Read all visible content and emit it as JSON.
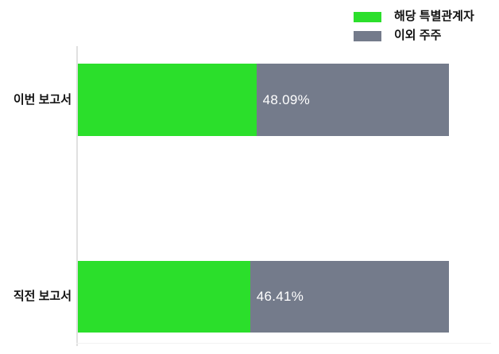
{
  "chart_data": {
    "type": "bar",
    "orientation": "horizontal",
    "stacked": true,
    "title": "",
    "xlabel": "",
    "ylabel": "",
    "xlim": [
      0,
      100
    ],
    "grid": false,
    "legend_position": "top-right",
    "categories": [
      "이번 보고서",
      "직전 보고서"
    ],
    "series": [
      {
        "name": "해당 특별관계자",
        "color": "#2BDF2B",
        "values": [
          48.09,
          46.41
        ]
      },
      {
        "name": "이외 주주",
        "color": "#747B8B",
        "values": [
          51.91,
          53.59
        ]
      }
    ],
    "value_labels": [
      "48.09%",
      "46.41%"
    ]
  },
  "colors": {
    "special_related_green": "#2BDF2B",
    "other_shareholders_gray": "#747B8B",
    "value_label_text": "#ffffff"
  }
}
